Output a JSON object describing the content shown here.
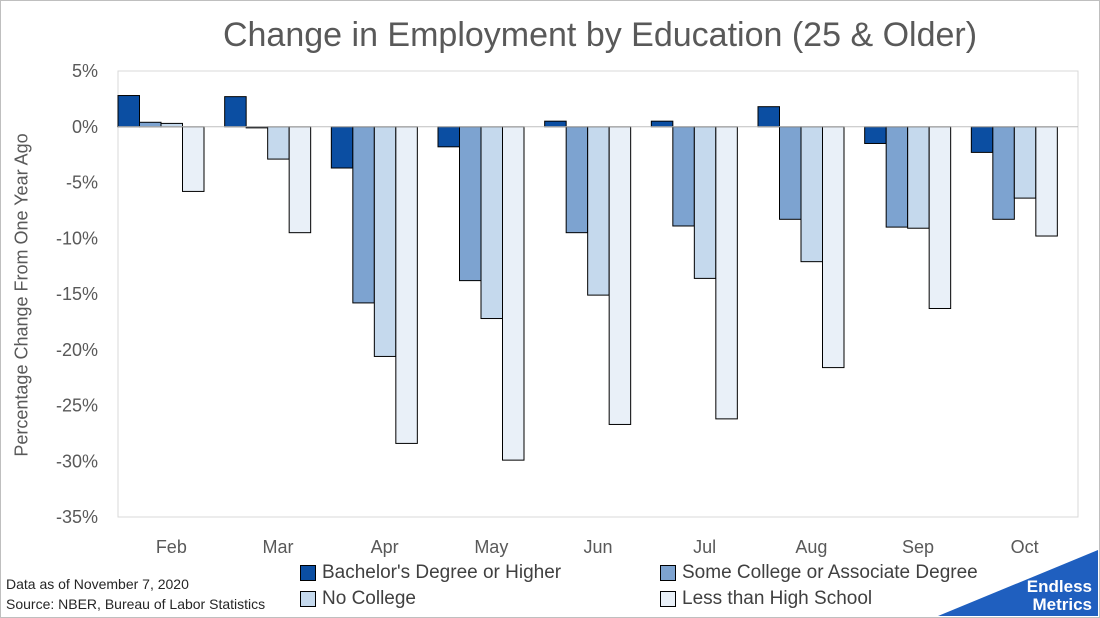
{
  "chart_data": {
    "type": "bar",
    "title": "Change in Employment by Education (25 & Older)",
    "xlabel": "",
    "ylabel": "Percentage Change From One Year Ago",
    "categories": [
      "Feb",
      "Mar",
      "Apr",
      "May",
      "Jun",
      "Jul",
      "Aug",
      "Sep",
      "Oct"
    ],
    "ylim": [
      -35,
      5
    ],
    "yticks": [
      5,
      0,
      -5,
      -10,
      -15,
      -20,
      -25,
      -30,
      -35
    ],
    "ytick_labels": [
      "5%",
      "0%",
      "-5%",
      "-10%",
      "-15%",
      "-20%",
      "-25%",
      "-30%",
      "-35%"
    ],
    "grid": false,
    "legend_position": "bottom",
    "series": [
      {
        "name": "Bachelor's Degree or Higher",
        "color": "#0b4ea2",
        "values": [
          2.8,
          2.7,
          -3.7,
          -1.8,
          0.5,
          0.5,
          1.8,
          -1.5,
          -2.3
        ]
      },
      {
        "name": "Some College or Associate Degree",
        "color": "#7da3d0",
        "values": [
          0.4,
          -0.1,
          -15.8,
          -13.8,
          -9.5,
          -8.9,
          -8.3,
          -9.0,
          -8.3
        ]
      },
      {
        "name": "No College",
        "color": "#c5d9ed",
        "values": [
          0.3,
          -2.9,
          -20.6,
          -17.2,
          -15.1,
          -13.6,
          -12.1,
          -9.1,
          -6.4
        ]
      },
      {
        "name": "Less than High School",
        "color": "#e9f0f8",
        "values": [
          -5.8,
          -9.5,
          -28.4,
          -29.9,
          -26.7,
          -26.2,
          -21.6,
          -16.3,
          -9.8
        ]
      }
    ]
  },
  "footnotes": {
    "date": "Data as of November 7, 2020",
    "source": "Source: NBER, Bureau of Labor Statistics"
  },
  "logo": {
    "line1": "Endless",
    "line2": "Metrics",
    "color": "#1f5fbf"
  }
}
